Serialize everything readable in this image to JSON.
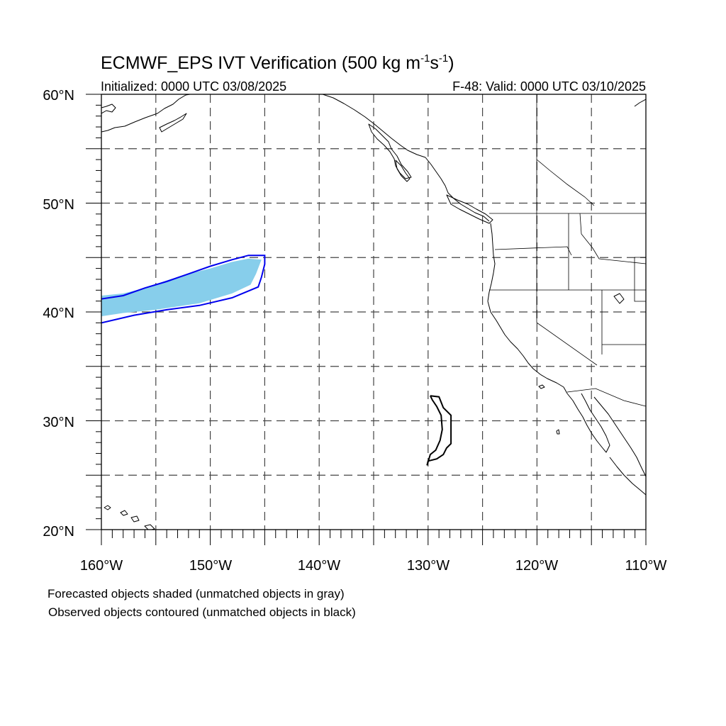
{
  "title": {
    "main_prefix": "ECMWF_EPS IVT Verification (500 kg m",
    "sup1": "-1",
    "mid": "s",
    "sup2": "-1",
    "suffix": ")",
    "initialized": "Initialized: 0000 UTC 03/08/2025",
    "valid": "F-48: Valid: 0000 UTC 03/10/2025"
  },
  "axes": {
    "lat_labels": [
      "60°N",
      "50°N",
      "40°N",
      "30°N",
      "20°N"
    ],
    "lon_labels": [
      "160°W",
      "150°W",
      "140°W",
      "130°W",
      "120°W",
      "110°W"
    ],
    "lat_range": [
      20,
      60
    ],
    "lon_range": [
      -160,
      -110
    ]
  },
  "notes": {
    "forecast": "Forecasted objects shaded (unmatched objects in gray)",
    "observed": "Observed objects contoured (unmatched objects in black)"
  },
  "colors": {
    "matched_forecast_fill": "#87ceeb",
    "matched_observed_contour": "#0000ee",
    "unmatched_observed_contour": "#000000",
    "gridline": "#444444"
  },
  "objects": {
    "matched_forecast": [
      [
        -160,
        41.5
      ],
      [
        -158,
        41.7
      ],
      [
        -156,
        42.2
      ],
      [
        -154,
        42.9
      ],
      [
        -152,
        43.5
      ],
      [
        -150,
        44.0
      ],
      [
        -148,
        44.6
      ],
      [
        -146.5,
        44.9
      ],
      [
        -145.3,
        44.8
      ],
      [
        -145.8,
        43.5
      ],
      [
        -146.3,
        42.5
      ],
      [
        -148,
        41.7
      ],
      [
        -151,
        40.8
      ],
      [
        -155,
        40.2
      ],
      [
        -158,
        39.9
      ],
      [
        -160,
        39.6
      ]
    ],
    "matched_observed": [
      [
        -160,
        41.2
      ],
      [
        -158,
        41.5
      ],
      [
        -156,
        42.2
      ],
      [
        -154,
        42.8
      ],
      [
        -152,
        43.5
      ],
      [
        -150,
        44.2
      ],
      [
        -148,
        44.8
      ],
      [
        -146.5,
        45.2
      ],
      [
        -145,
        45.2
      ],
      [
        -145,
        44.4
      ],
      [
        -145.3,
        43.2
      ],
      [
        -145.6,
        42.3
      ],
      [
        -148,
        41.3
      ],
      [
        -151,
        40.6
      ],
      [
        -154,
        40.2
      ],
      [
        -157,
        39.7
      ],
      [
        -160,
        39.0
      ]
    ],
    "unmatched_observed": [
      [
        -129.8,
        32.3
      ],
      [
        -129,
        32.2
      ],
      [
        -128.6,
        31.2
      ],
      [
        -127.9,
        30.5
      ],
      [
        -127.9,
        27.9
      ],
      [
        -128.3,
        27.5
      ],
      [
        -128.6,
        26.9
      ],
      [
        -129.2,
        26.5
      ],
      [
        -130,
        26.3
      ],
      [
        -130.1,
        25.9
      ],
      [
        -129.8,
        26.9
      ],
      [
        -129.3,
        27.3
      ],
      [
        -128.9,
        28.2
      ],
      [
        -128.7,
        29.2
      ],
      [
        -128.8,
        30.5
      ],
      [
        -129.2,
        31.3
      ],
      [
        -129.6,
        31.9
      ]
    ]
  }
}
